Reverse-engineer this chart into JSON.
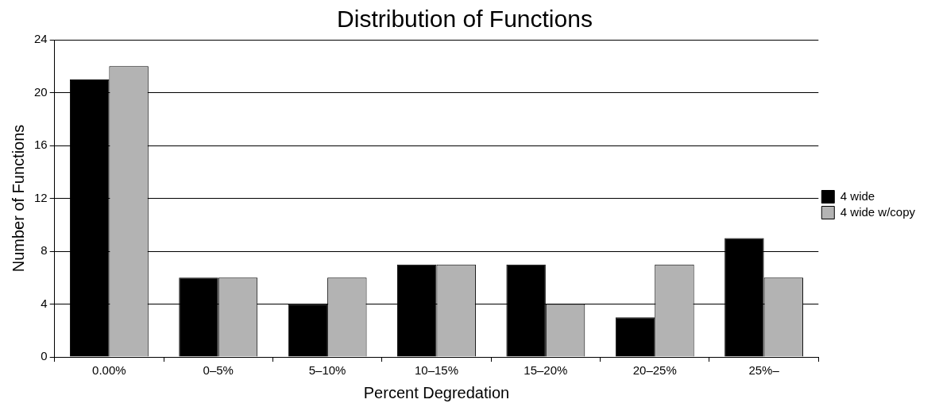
{
  "chart_data": {
    "type": "bar",
    "title": "Distribution of Functions",
    "xlabel": "Percent Degredation",
    "ylabel": "Number of Functions",
    "categories": [
      "0.00%",
      "0–5%",
      "5–10%",
      "10–15%",
      "15–20%",
      "20–25%",
      "25%–"
    ],
    "series": [
      {
        "name": "4 wide",
        "color": "#000000",
        "values": [
          21,
          6,
          4,
          7,
          7,
          3,
          9
        ]
      },
      {
        "name": "4 wide w/copy",
        "color": "#b3b3b3",
        "values": [
          22,
          6,
          6,
          7,
          4,
          7,
          6
        ]
      }
    ],
    "ylim": [
      0,
      24
    ],
    "yticks": [
      0,
      4,
      8,
      12,
      16,
      20,
      24
    ],
    "grid": "y",
    "legend": "right"
  }
}
